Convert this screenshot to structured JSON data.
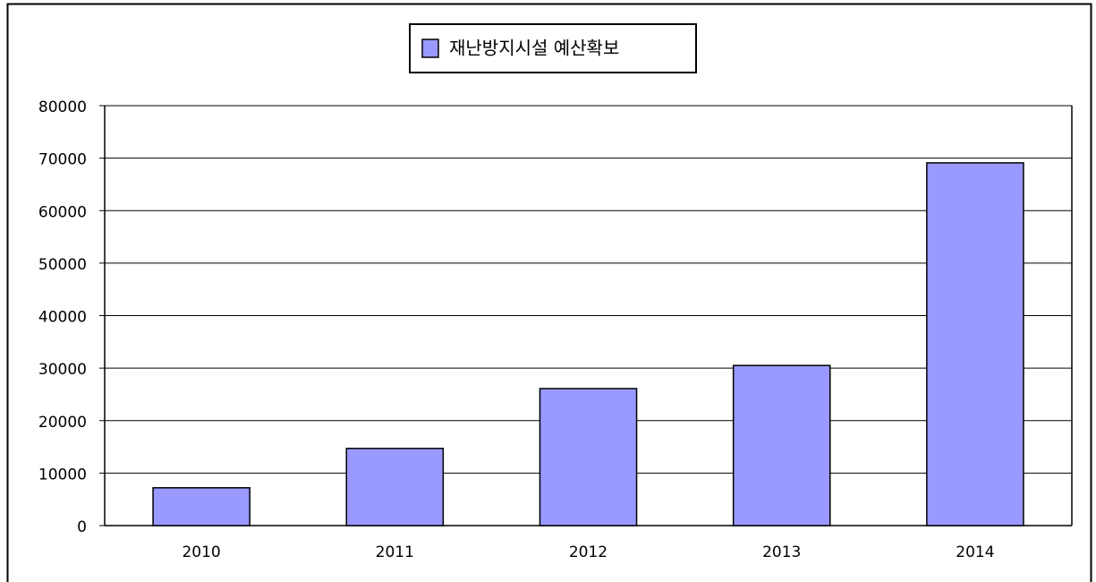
{
  "chart_data": {
    "type": "bar",
    "categories": [
      "2010",
      "2011",
      "2012",
      "2013",
      "2014"
    ],
    "series": [
      {
        "name": "재난방지시설 예산확보",
        "color": "#9999ff",
        "values": [
          7200,
          14700,
          26100,
          30500,
          69100
        ]
      }
    ],
    "ylim": [
      0,
      80000
    ],
    "yticks": [
      0,
      10000,
      20000,
      30000,
      40000,
      50000,
      60000,
      70000,
      80000
    ],
    "grid": true,
    "legend": "top"
  }
}
